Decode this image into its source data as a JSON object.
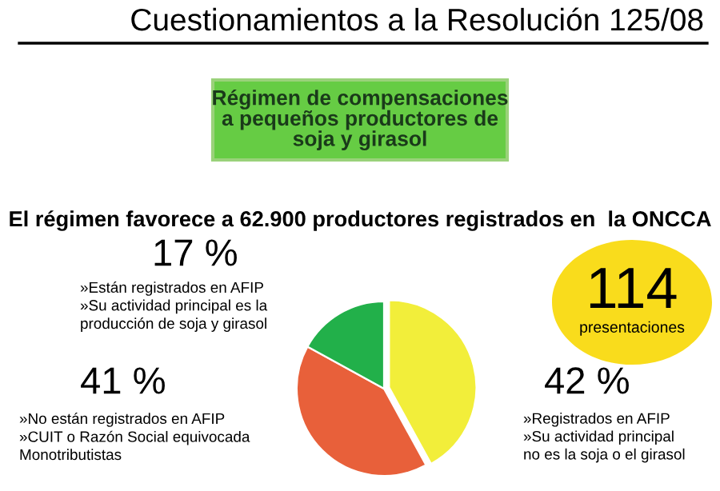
{
  "chart_data": {
    "type": "pie",
    "title": "Cuestionamientos a la Resolución 125/08",
    "subtitle": "Régimen de compensaciones\na pequeños productores de\nsoja y girasol",
    "annotations": [
      "El régimen favorece a 62.900 productores registrados en  la ONCCA",
      "114",
      "presentaciones"
    ],
    "categories": [
      "»Registrados en AFIP\n»Su actividad principal\nno es la soja o el girasol",
      "»No están registrados en AFIP\n»CUIT o Razón Social equivocada\nMonotributistas",
      "»Están registrados en AFIP\n»Su actividad principal es la\nproducción de soja y girasol"
    ],
    "values": [
      42,
      41,
      17
    ],
    "value_labels": [
      "42 %",
      "41 %",
      "17 %"
    ],
    "colors": [
      "#f2ee3a",
      "#e8603a",
      "#22b04a"
    ],
    "legend": false
  }
}
